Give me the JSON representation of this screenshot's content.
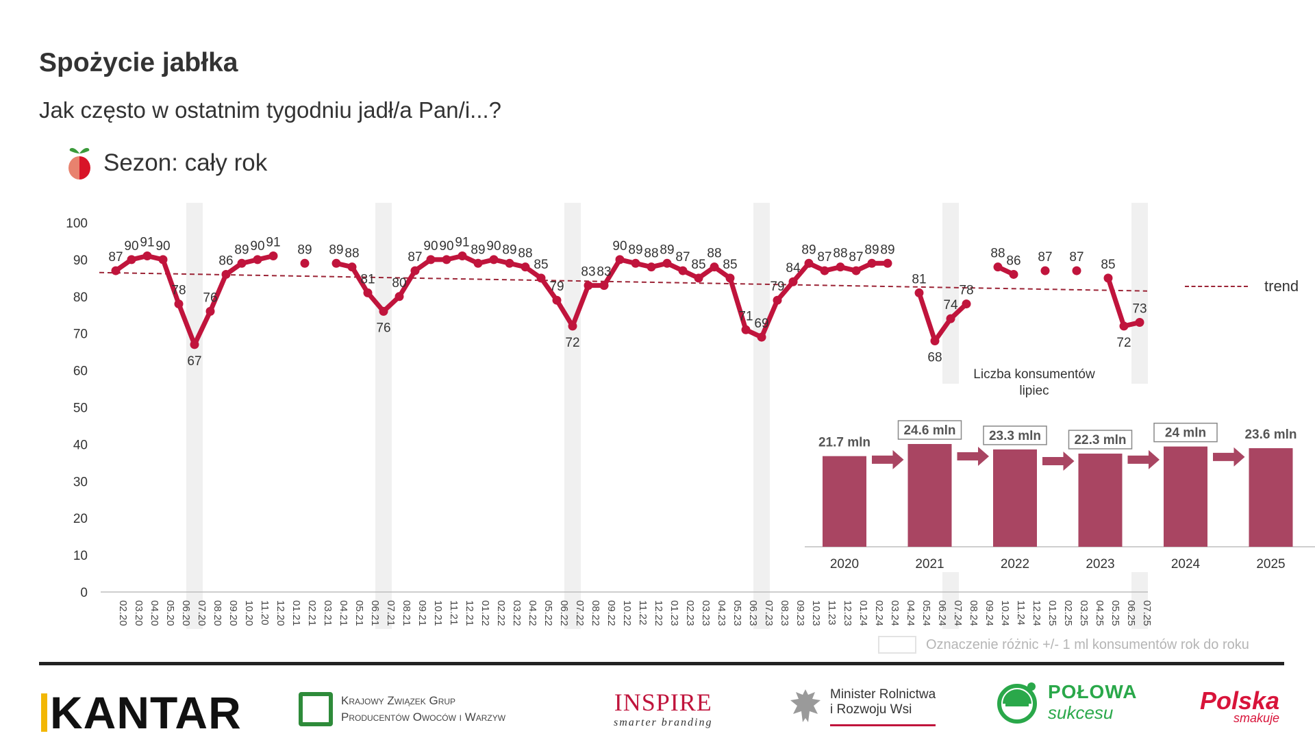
{
  "header": {
    "title": "Spożycie jabłka",
    "subtitle": "Jak często w ostatnim tygodniu jadł/a Pan/i...?",
    "season": "Sezon: cały rok",
    "season_icon": "apple-icon"
  },
  "colors": {
    "series": "#c0143c",
    "trend": "#9b2335",
    "inset_bars": "#a94562",
    "highlight": "#f0f0f0"
  },
  "chart_data": [
    {
      "type": "line",
      "ylim": [
        0,
        100
      ],
      "yticks": [
        0,
        10,
        20,
        30,
        40,
        50,
        60,
        70,
        80,
        90,
        100
      ],
      "grid": false,
      "x": [
        "02.20",
        "03.20",
        "04.20",
        "05.20",
        "06.20",
        "07.20",
        "08.20",
        "09.20",
        "10.20",
        "11.20",
        "12.20",
        "01.21",
        "02.21",
        "03.21",
        "04.21",
        "05.21",
        "06.21",
        "07.21",
        "08.21",
        "09.21",
        "10.21",
        "11.21",
        "12.21",
        "01.22",
        "02.22",
        "03.22",
        "04.22",
        "05.22",
        "06.22",
        "07.22",
        "08.22",
        "09.22",
        "10.22",
        "11.22",
        "12.22",
        "01.23",
        "02.23",
        "03.23",
        "04.23",
        "05.23",
        "06.23",
        "07.23",
        "08.23",
        "09.23",
        "10.23",
        "11.23",
        "12.23",
        "01.24",
        "02.24",
        "03.24",
        "04.24",
        "05.24",
        "06.24",
        "07.24",
        "08.24",
        "09.24",
        "10.24",
        "11.24",
        "12.24",
        "01.25",
        "02.25",
        "03.25",
        "04.25",
        "05.25",
        "06.25",
        "07.25"
      ],
      "values": [
        87,
        90,
        91,
        90,
        78,
        67,
        76,
        86,
        89,
        90,
        91,
        null,
        89,
        null,
        89,
        88,
        81,
        76,
        80,
        87,
        90,
        90,
        91,
        89,
        90,
        89,
        88,
        85,
        79,
        72,
        83,
        83,
        90,
        89,
        88,
        89,
        87,
        85,
        88,
        85,
        71,
        69,
        79,
        84,
        89,
        87,
        88,
        87,
        89,
        89,
        null,
        81,
        68,
        74,
        78,
        null,
        88,
        86,
        null,
        87,
        null,
        87,
        null,
        85,
        72,
        73
      ],
      "highlighted_months": [
        "07.20",
        "07.21",
        "07.22",
        "07.23",
        "07.24",
        "07.25"
      ],
      "trend": {
        "label": "trend",
        "start": 86.5,
        "end": 81.5
      }
    },
    {
      "type": "bar",
      "title": "Liczba konsumentów\nlipiec",
      "categories": [
        "2020",
        "2021",
        "2022",
        "2023",
        "2024",
        "2025"
      ],
      "values": [
        21.7,
        24.6,
        23.3,
        22.3,
        24.0,
        23.6
      ],
      "labels": [
        "21.7 mln",
        "24.6 mln",
        "23.3 mln",
        "22.3 mln",
        "24 mln",
        "23.6 mln"
      ],
      "boxed": [
        false,
        true,
        true,
        true,
        true,
        false
      ]
    }
  ],
  "legend": {
    "trend": "trend",
    "diff": "Oznaczenie różnic +/- 1 ml konsumentów rok do roku"
  },
  "footer": {
    "kantar": "KANTAR",
    "kzg_line1": "Krajowy Związek Grup",
    "kzg_line2": "Producentów Owoców i Warzyw",
    "inspire": "INSPIRE",
    "inspire_tag": "smarter branding",
    "minister_line1": "Minister Rolnictwa",
    "minister_line2": "i Rozwoju Wsi",
    "polowa_line1": "POŁOWA",
    "polowa_line2": "sukcesu",
    "polska_line1": "Polska",
    "polska_line2": "smakuje"
  }
}
